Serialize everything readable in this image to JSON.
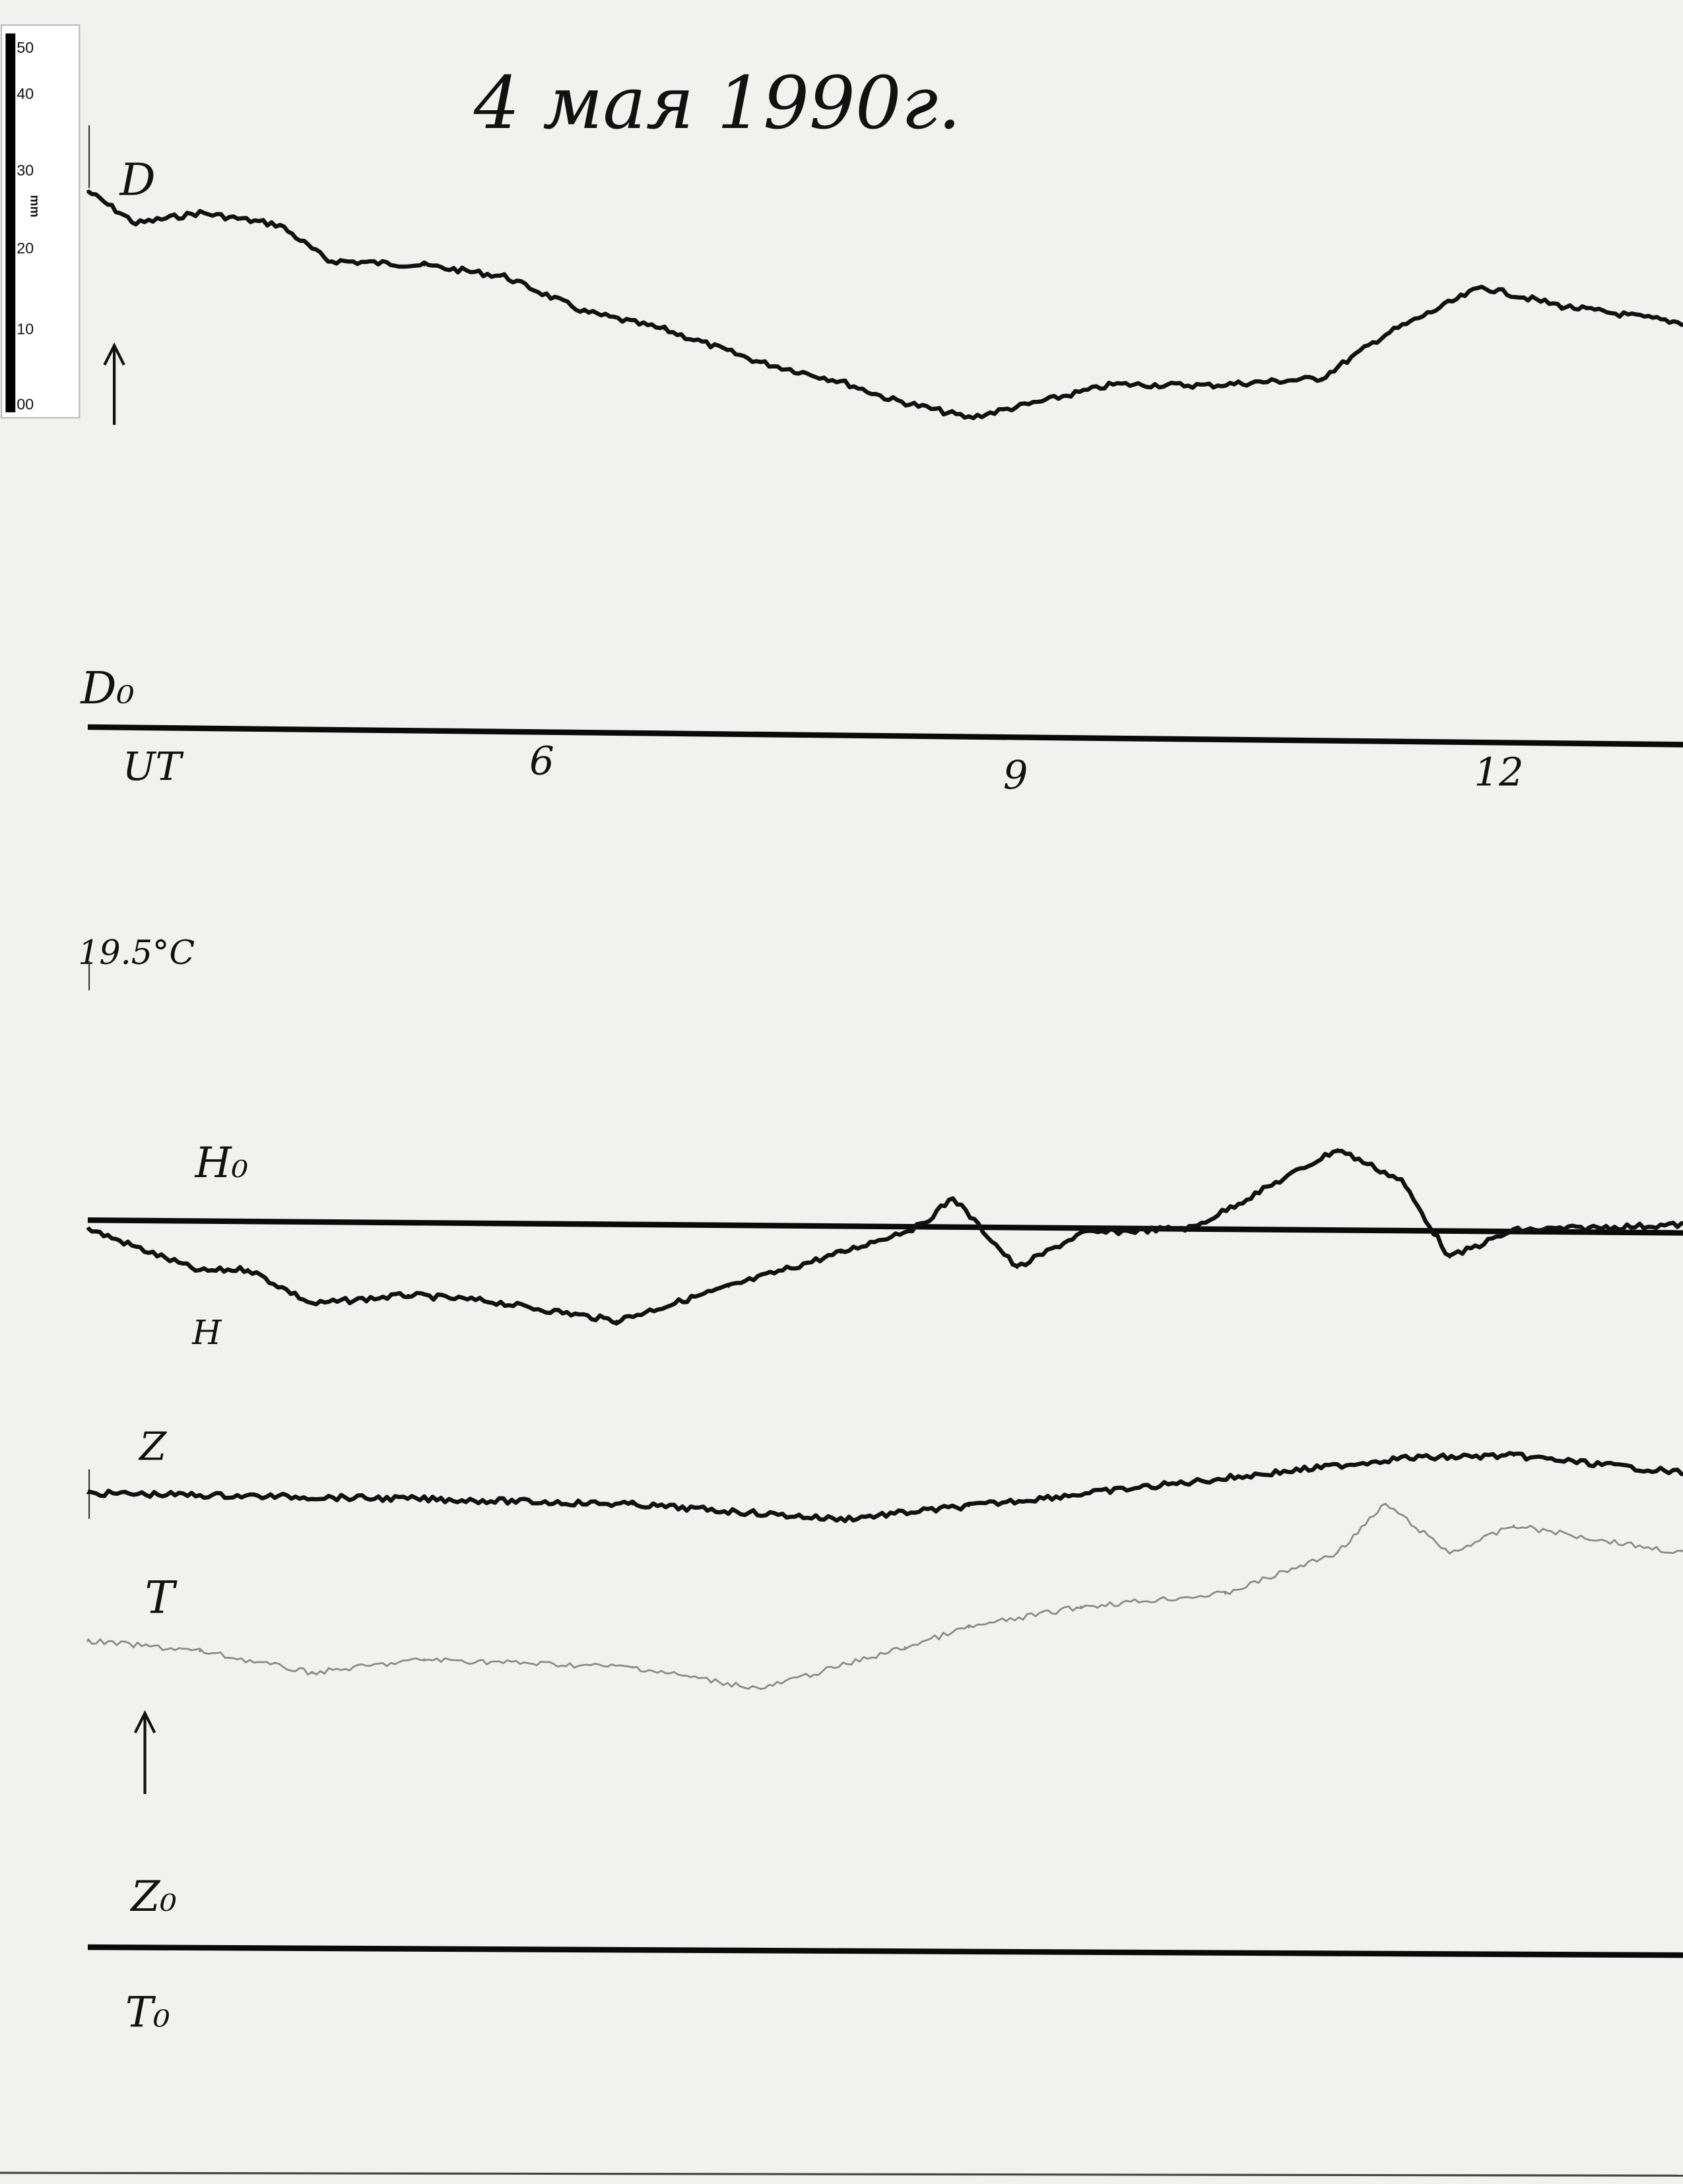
{
  "chart_data": {
    "type": "line",
    "title": "4 мая 1990г.",
    "x_unit_label": "UT",
    "x_ticks": [
      6,
      9,
      12
    ],
    "xlim": [
      3.2,
      13.2
    ],
    "temperature_label": "19.5°C",
    "ruler": {
      "unit": "mm",
      "ticks": [
        "50",
        "40",
        "30",
        "20",
        "10",
        "00"
      ]
    },
    "baselines": [
      {
        "name": "D0",
        "label": "D₀"
      },
      {
        "name": "H0",
        "label": "H₀"
      },
      {
        "name": "Z0",
        "label": "Z₀"
      },
      {
        "name": "T0",
        "label": "T₀"
      }
    ],
    "series": [
      {
        "name": "D",
        "label": "D",
        "baseline": "D0",
        "color": "#111111",
        "x": [
          3.2,
          3.5,
          3.9,
          4.4,
          4.7,
          5.3,
          5.8,
          6.3,
          6.8,
          7.4,
          7.9,
          8.2,
          8.7,
          9.1,
          9.6,
          10.2,
          10.9,
          11.3,
          11.9,
          12.4,
          13.2
        ],
        "y": [
          88.9,
          83.6,
          85.5,
          83.6,
          77.8,
          77.2,
          75.5,
          69.8,
          67.0,
          61.7,
          58.7,
          55.9,
          52.9,
          55.4,
          58.7,
          58.7,
          60.1,
          67.5,
          75.5,
          72.5,
          69.8
        ]
      },
      {
        "name": "H",
        "label": "H",
        "baseline": "H0",
        "color": "#111111",
        "x": [
          3.2,
          3.5,
          3.9,
          4.2,
          4.6,
          5.2,
          5.7,
          6.5,
          7.2,
          7.9,
          8.4,
          8.6,
          9.0,
          9.4,
          10.1,
          11.0,
          11.4,
          11.7,
          12.1,
          13.2
        ],
        "y": [
          -1.4,
          -4.4,
          -8.3,
          -7.9,
          -13.6,
          -12.0,
          -12.9,
          -16.0,
          -10.2,
          -4.4,
          0.2,
          4.9,
          -6.7,
          -0.9,
          0.2,
          13.4,
          8.3,
          -4.4,
          0.2,
          1.4
        ]
      },
      {
        "name": "Z",
        "label": "Z",
        "baseline": "Z0",
        "color": "#111111",
        "x": [
          3.2,
          5.3,
          6.6,
          7.9,
          8.7,
          10.1,
          11.0,
          11.4,
          12.1,
          13.2
        ],
        "y": [
          75.3,
          74.6,
          73.9,
          71.6,
          73.9,
          78.1,
          80.9,
          82.2,
          82.7,
          79.9
        ]
      },
      {
        "name": "T",
        "label": "T",
        "baseline": "T0",
        "color": "#8a8a8a",
        "x": [
          3.2,
          3.9,
          4.6,
          5.3,
          6.6,
          7.4,
          8.3,
          8.7,
          9.4,
          10.3,
          11.0,
          11.3,
          11.7,
          12.1,
          13.2
        ],
        "y": [
          50.8,
          49.2,
          45.7,
          48.0,
          46.9,
          43.4,
          50.4,
          53.8,
          57.3,
          59.6,
          66.5,
          74.6,
          66.5,
          71.1,
          66.5
        ]
      }
    ]
  }
}
